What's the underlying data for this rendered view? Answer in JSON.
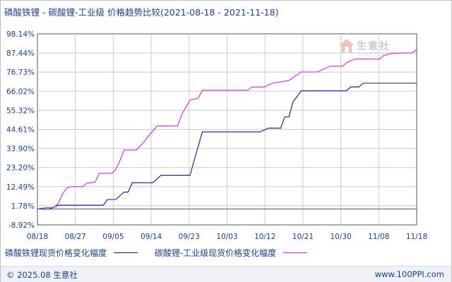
{
  "title": "磷酸铁锂 - 碳酸锂-工业级 价格趋势比较(2021-08-18 - 2021-11-18)",
  "logo": {
    "text": "生意社",
    "sub": "100PPI.COM",
    "icon": "house-logo-icon"
  },
  "footer": {
    "copyright": "© 2025.08 生意社",
    "site": "www.100PPI.com"
  },
  "colors": {
    "series1": "#1111aa",
    "series2": "#dd22dd",
    "grid": "#cccccc",
    "axis": "#555555",
    "text": "#1a3f8f"
  },
  "chart_data": {
    "type": "line",
    "title": "磷酸铁锂 - 碳酸锂-工业级 价格趋势比较(2021-08-18 - 2021-11-18)",
    "x_tick_labels": [
      "08/18",
      "08/27",
      "09/05",
      "09/14",
      "09/23",
      "10/03",
      "10/12",
      "10/21",
      "10/30",
      "11/08",
      "11/18"
    ],
    "y_tick_labels": [
      "98.14%",
      "87.44%",
      "76.73%",
      "66.02%",
      "55.32%",
      "44.61%",
      "33.90%",
      "23.20%",
      "12.49%",
      "1.78%",
      "-8.92%"
    ],
    "ylim": [
      -8.92,
      98.14
    ],
    "grid": true,
    "legend_position": "bottom",
    "series": [
      {
        "name": "磷酸铁锂现货价格变化幅度",
        "points": [
          [
            "08/18",
            0.0
          ],
          [
            "08/21",
            0.0
          ],
          [
            "08/23",
            2.1
          ],
          [
            "08/25",
            2.1
          ],
          [
            "08/27",
            2.1
          ],
          [
            "09/01",
            2.1
          ],
          [
            "09/03",
            2.1
          ],
          [
            "09/04",
            5.3
          ],
          [
            "09/06",
            5.3
          ],
          [
            "09/08",
            9.5
          ],
          [
            "09/09",
            9.5
          ],
          [
            "09/10",
            14.7
          ],
          [
            "09/15",
            14.7
          ],
          [
            "09/17",
            18.9
          ],
          [
            "09/24",
            18.9
          ],
          [
            "09/27",
            43.2
          ],
          [
            "10/05",
            43.2
          ],
          [
            "10/11",
            43.2
          ],
          [
            "10/13",
            45.3
          ],
          [
            "10/16",
            45.3
          ],
          [
            "10/17",
            51.6
          ],
          [
            "10/18",
            51.6
          ],
          [
            "10/19",
            60.0
          ],
          [
            "10/21",
            66.2
          ],
          [
            "10/25",
            66.2
          ],
          [
            "11/01",
            66.2
          ],
          [
            "11/02",
            68.4
          ],
          [
            "11/04",
            68.4
          ],
          [
            "11/05",
            70.5
          ],
          [
            "11/18",
            70.5
          ]
        ]
      },
      {
        "name": "碳酸锂-工业级现货价格变化幅度",
        "points": [
          [
            "08/18",
            0.0
          ],
          [
            "08/20",
            0.8
          ],
          [
            "08/22",
            0.8
          ],
          [
            "08/23",
            3.0
          ],
          [
            "08/24",
            8.0
          ],
          [
            "08/25",
            11.5
          ],
          [
            "08/26",
            12.5
          ],
          [
            "08/29",
            12.5
          ],
          [
            "08/30",
            14.5
          ],
          [
            "09/01",
            15.0
          ],
          [
            "09/02",
            20.0
          ],
          [
            "09/05",
            20.0
          ],
          [
            "09/06",
            22.0
          ],
          [
            "09/07",
            27.0
          ],
          [
            "09/08",
            33.0
          ],
          [
            "09/11",
            33.0
          ],
          [
            "09/13",
            38.0
          ],
          [
            "09/14",
            41.0
          ],
          [
            "09/16",
            46.5
          ],
          [
            "09/21",
            46.5
          ],
          [
            "09/22",
            53.0
          ],
          [
            "09/24",
            61.0
          ],
          [
            "09/26",
            62.0
          ],
          [
            "09/27",
            66.5
          ],
          [
            "10/03",
            66.5
          ],
          [
            "10/08",
            66.5
          ],
          [
            "10/09",
            68.3
          ],
          [
            "10/12",
            68.3
          ],
          [
            "10/14",
            70.5
          ],
          [
            "10/18",
            72.0
          ],
          [
            "10/21",
            76.8
          ],
          [
            "10/25",
            76.8
          ],
          [
            "10/26",
            78.0
          ],
          [
            "10/28",
            80.0
          ],
          [
            "10/31",
            80.0
          ],
          [
            "11/01",
            82.0
          ],
          [
            "11/03",
            84.0
          ],
          [
            "11/09",
            84.0
          ],
          [
            "11/10",
            86.0
          ],
          [
            "11/12",
            87.2
          ],
          [
            "11/17",
            87.5
          ],
          [
            "11/18",
            89.5
          ]
        ]
      }
    ]
  }
}
